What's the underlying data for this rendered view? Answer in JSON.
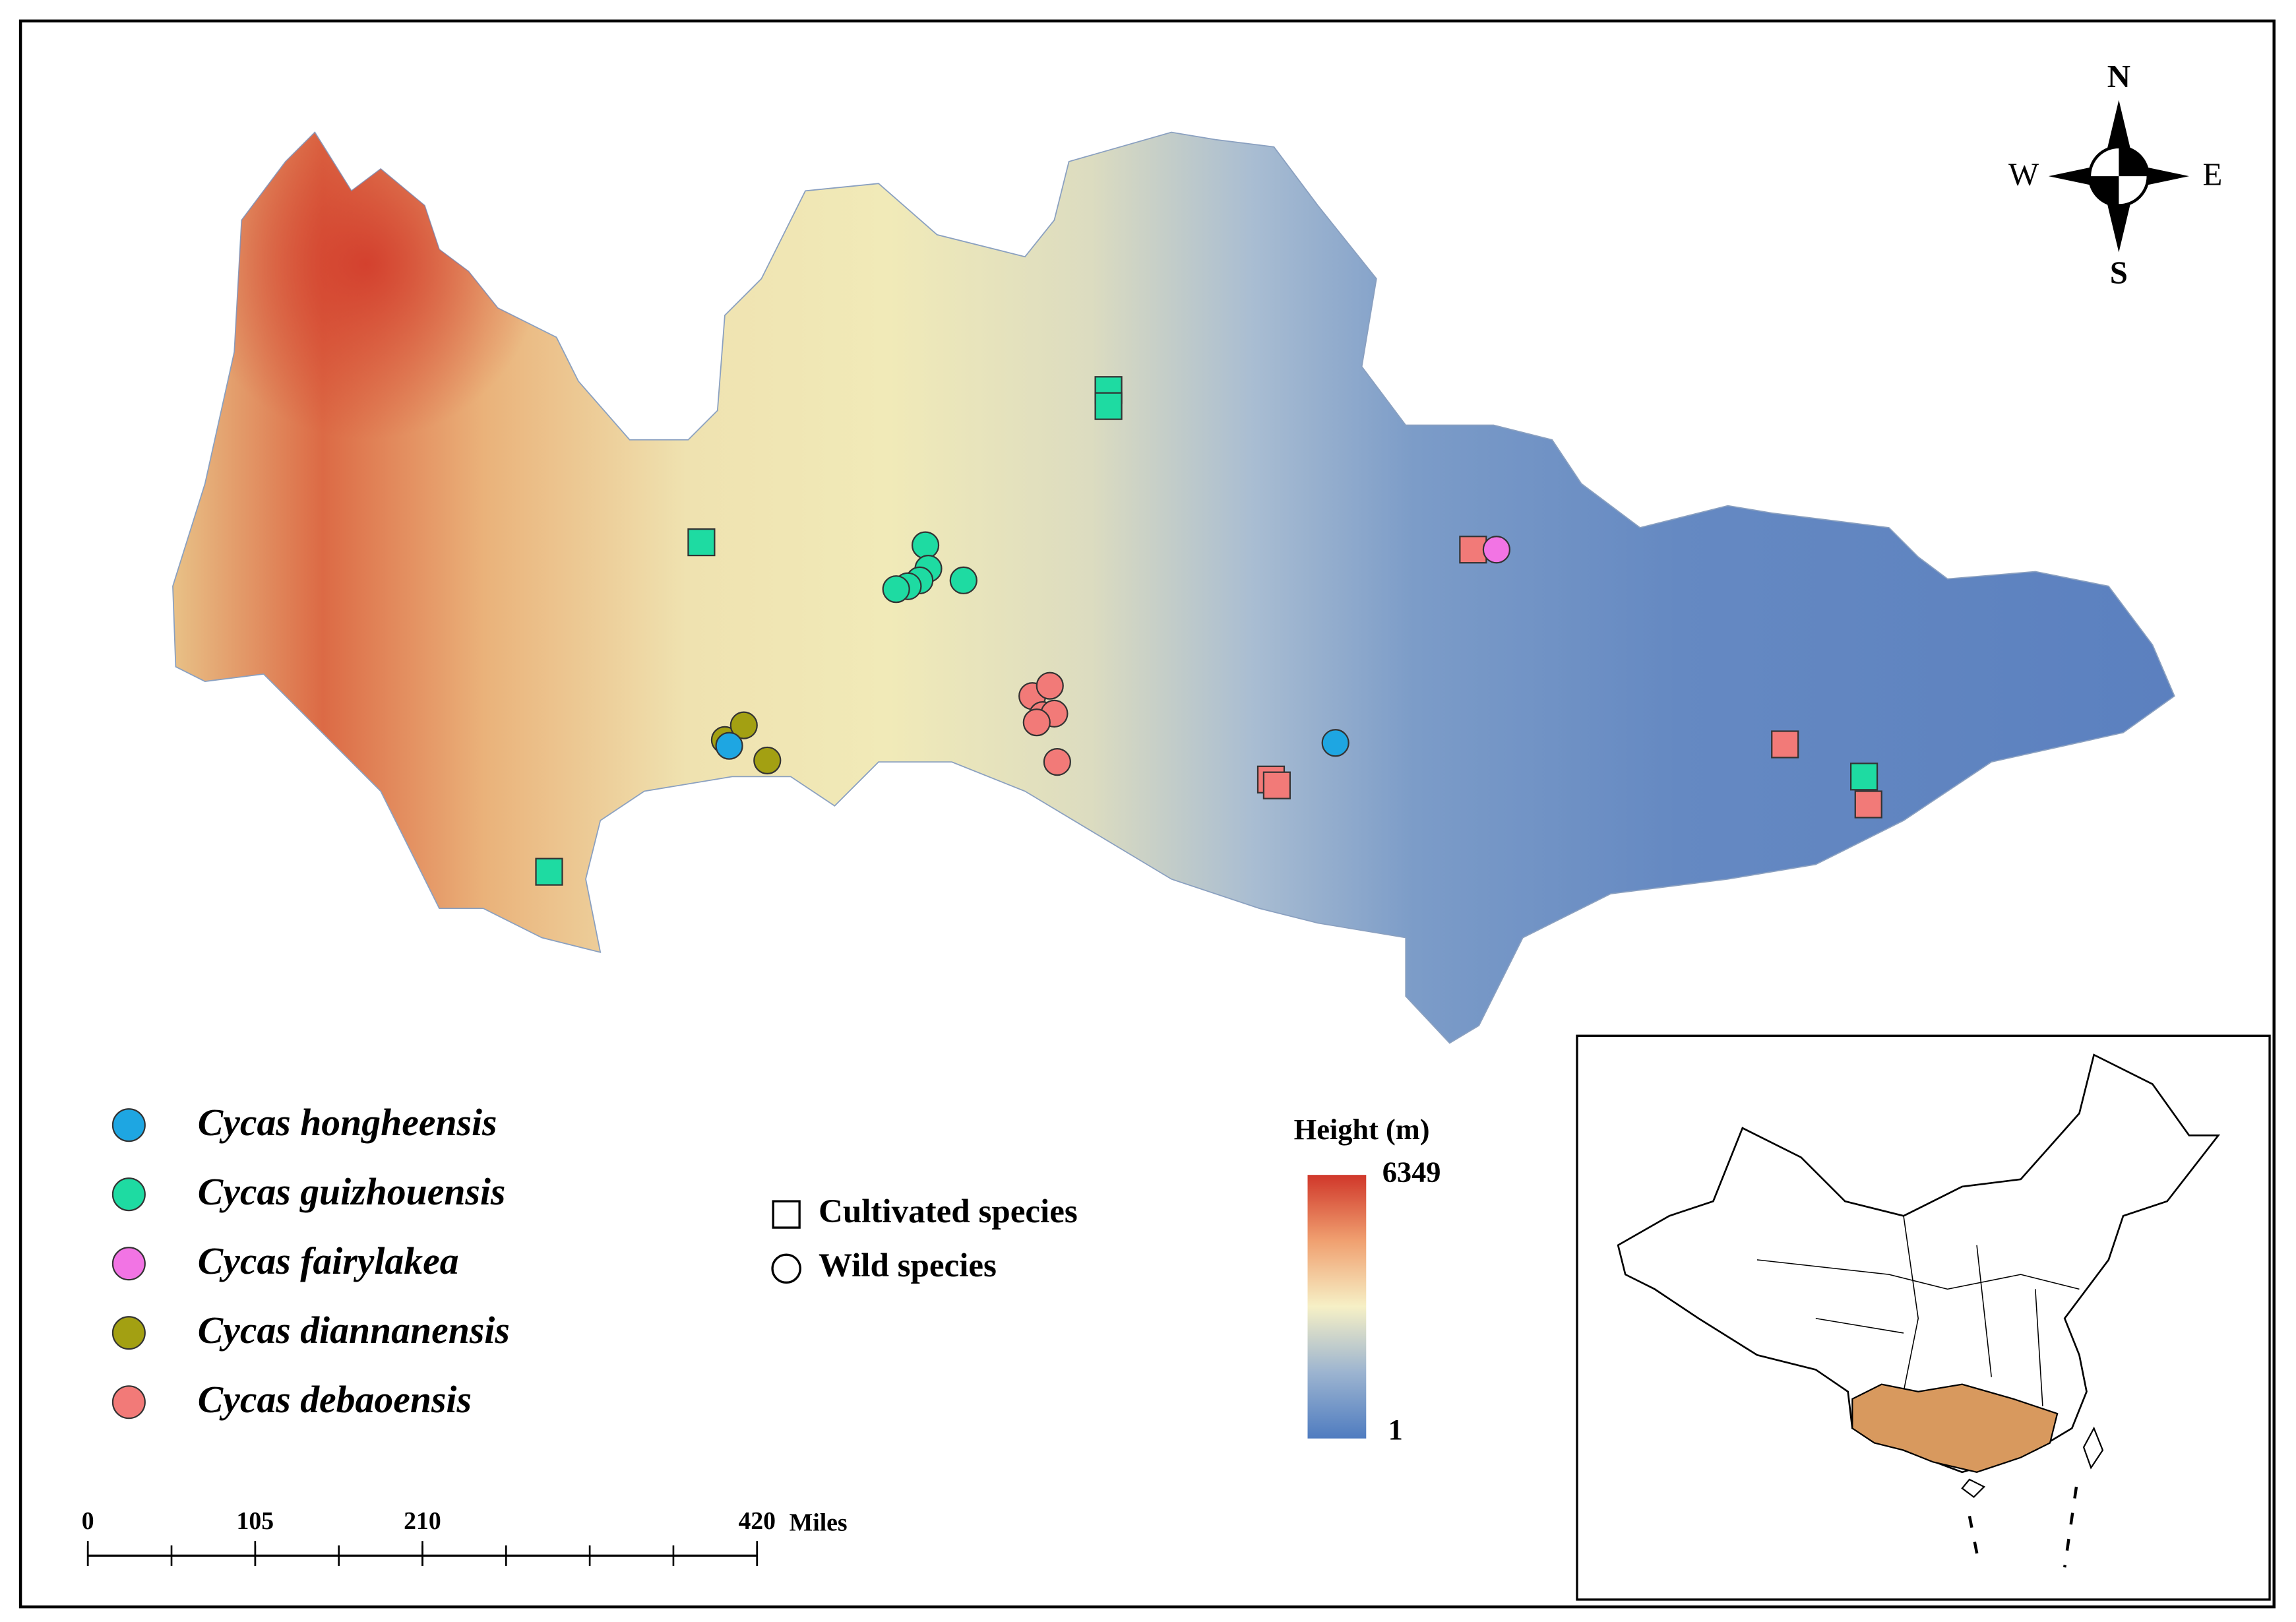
{
  "legend": {
    "species": [
      {
        "name": "Cycas hongheensis",
        "color": "#1ea6e2"
      },
      {
        "name": "Cycas guizhouensis",
        "color": "#1edba2"
      },
      {
        "name": "Cycas fairylakea",
        "color": "#f274e4"
      },
      {
        "name": "Cycas diannanensis",
        "color": "#a3a012"
      },
      {
        "name": "Cycas debaoensis",
        "color": "#f27a78"
      }
    ]
  },
  "symbols": {
    "cultivated": "Cultivated species",
    "wild": "Wild species"
  },
  "colorbar": {
    "title": "Height (m)",
    "max": 6349,
    "min": 1
  },
  "scale_bar": {
    "ticks": [
      0,
      105,
      210,
      420
    ],
    "unit": "Miles"
  },
  "compass": {
    "n": "N",
    "s": "S",
    "e": "E",
    "w": "W"
  }
}
